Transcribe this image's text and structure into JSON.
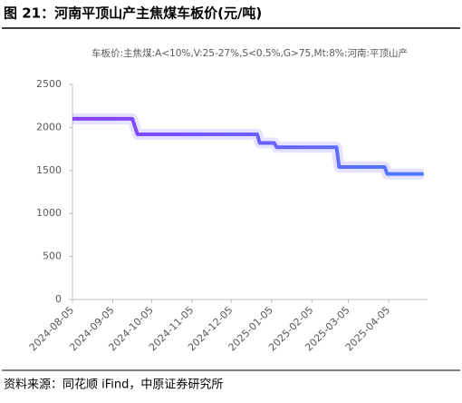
{
  "header": {
    "title": "图 21：河南平顶山产主焦煤车板价(元/吨)"
  },
  "chart_data": {
    "type": "line",
    "x": [
      "2024-08-05",
      "2024-09-20",
      "2024-09-24",
      "2024-12-25",
      "2024-12-27",
      "2025-01-07",
      "2025-01-09",
      "2025-02-24",
      "2025-02-26",
      "2025-04-02",
      "2025-04-04",
      "2025-05-02"
    ],
    "series": [
      {
        "name": "车板价:主焦煤:A<10%,V:25-27%,S<0.5%,G>75,Mt:8%:河南:平顶山产",
        "color": "#6a5cff",
        "values": [
          2100,
          2100,
          1920,
          1920,
          1820,
          1820,
          1770,
          1770,
          1540,
          1540,
          1460,
          1460
        ]
      }
    ],
    "xlim": [
      "2024-08-05",
      "2025-05-05"
    ],
    "xticks": [
      "2024-08-05",
      "2024-09-05",
      "2024-10-05",
      "2024-11-05",
      "2024-12-05",
      "2025-01-05",
      "2025-02-05",
      "2025-03-05",
      "2025-04-05"
    ],
    "ylim": [
      0,
      2500
    ],
    "yticks": [
      0,
      500,
      1000,
      1500,
      2000,
      2500
    ],
    "grid": false,
    "legend": "top"
  },
  "footer": {
    "source": "资料来源：同花顺 iFind，中原证券研究所"
  }
}
